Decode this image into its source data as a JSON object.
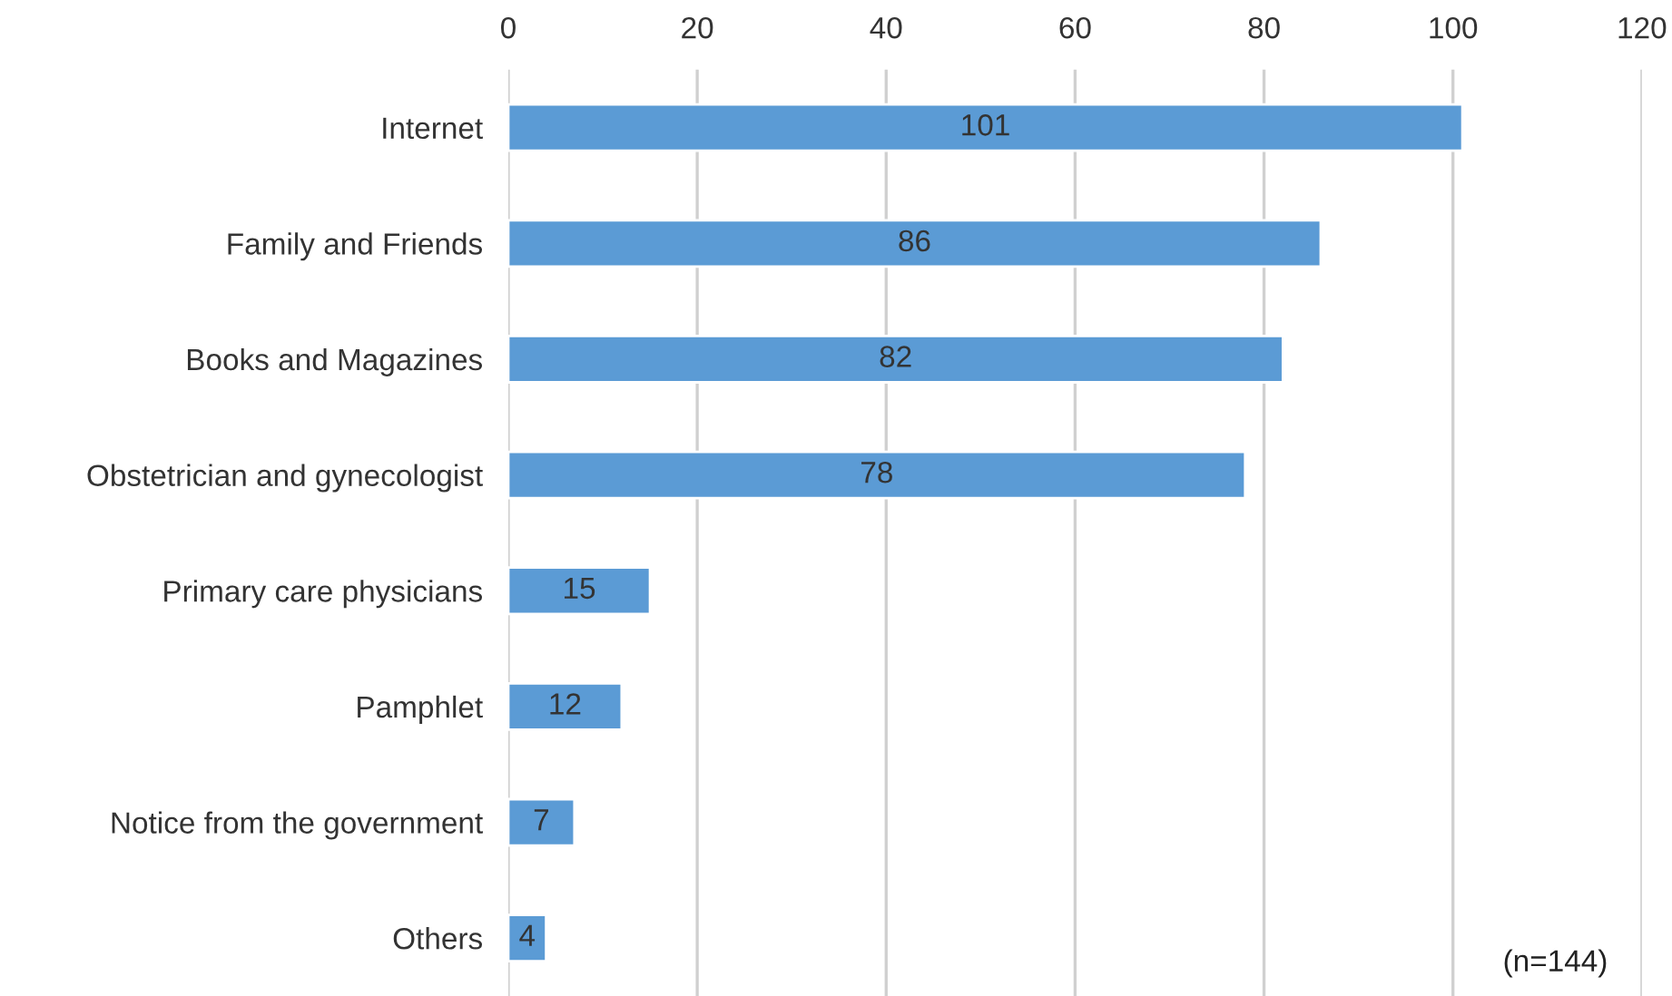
{
  "chart_data": {
    "type": "bar",
    "orientation": "horizontal",
    "categories": [
      "Internet",
      "Family and Friends",
      "Books and Magazines",
      "Obstetrician and gynecologist",
      "Primary care physicians",
      "Pamphlet",
      "Notice from the government",
      "Others"
    ],
    "values": [
      101,
      86,
      82,
      78,
      15,
      12,
      7,
      4
    ],
    "color": "#5b9bd5",
    "xlim": [
      0,
      120
    ],
    "xticks": [
      0,
      20,
      40,
      60,
      80,
      100,
      120
    ],
    "grid": "x",
    "data_labels": true,
    "annotations": [
      "(n=144)"
    ]
  }
}
